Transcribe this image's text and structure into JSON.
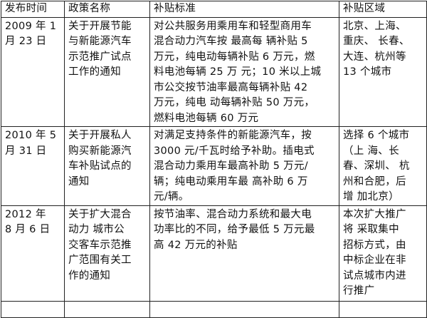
{
  "headers": [
    "发布时间",
    "政策名称",
    "补贴标准",
    "补贴区域"
  ],
  "rows": [
    {
      "date": "2009 年 1\n月 23 日",
      "policy": "关于开展节能\n与新能源汽车\n示范推广试点\n工作的通知",
      "standard": "对公共服务用乘用车和轻型商用车\n混合动力汽车按 最高每 辆补贴 5\n万元，纯电动每辆补贴 6 万元，燃\n料电池每辆 25 万 元；10 米以上城\n市公交按节油率最高每辆补贴 42\n万元，纯电 动每辆补贴 50 万元，\n燃料电池每辆 60 万元",
      "region": "北京、上海、\n重庆、 长春、\n大连、杭州等\n13 个城市"
    },
    {
      "date": "2010 年 5\n月 31 日",
      "policy": "关于开展私人\n购买新能源汽\n车补贴试点的\n通知",
      "standard": "对满足支持条件的新能源汽车，按\n3000 元/千瓦时给予补助。插电式\n混合动力乘用车最高补助 5 万元/\n辆；纯电动乘用车最 高补助 6 万\n元/辆。",
      "region": "选择 6 个城市\n（上 海、长\n春、深圳、 杭\n州和合肥，后\n增 加北京）"
    },
    {
      "date": "2012    年\n8 月 6 日",
      "policy": "关于扩大混合\n动力 城市公\n交客车示范推\n广范围有关工\n作的通知",
      "standard": "按节油率、混合动力系统和最大电\n功率比的不同，给予最低 5 万元最\n高 42 万元的补贴",
      "region": "本次扩大推广\n将 采取集中\n招标方式，由\n中标企业在非\n试点城市内进\n行推广"
    }
  ]
}
